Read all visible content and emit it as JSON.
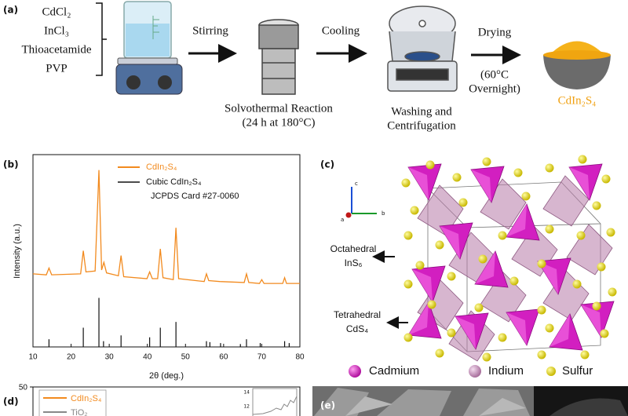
{
  "panel_a": {
    "label": "(a)",
    "reagents": [
      "CdCl₂",
      "InCl₃",
      "Thioacetamide",
      "PVP"
    ],
    "steps": [
      "Stirring",
      "Cooling",
      "Drying"
    ],
    "reaction": [
      "Solvothermal Reaction",
      "(24 h at 180°C)"
    ],
    "washing": [
      "Washing and",
      "Centrifugation"
    ],
    "drying_conditions": [
      "(60°C",
      "Overnight)"
    ],
    "product": "CdIn₂S₄"
  },
  "panel_b": {
    "label": "(b)",
    "chart_data": {
      "type": "line",
      "x_label": "2θ (deg.)",
      "y_label": "Intensity (a.u.)",
      "xlim": [
        10,
        80
      ],
      "xticks": [
        10,
        20,
        30,
        40,
        50,
        60,
        70,
        80
      ],
      "ylim": [
        0,
        100
      ],
      "series": [
        {
          "name": "CdIn₂S₄",
          "color": "#f28a1e",
          "x": [
            10,
            13.5,
            14.2,
            14.9,
            22.5,
            23.2,
            23.9,
            26.3,
            27.3,
            28.0,
            28.6,
            29.3,
            32.4,
            33.1,
            33.8,
            39.9,
            40.6,
            41.3,
            42.7,
            43.4,
            44.1,
            46.8,
            47.5,
            48.2,
            54.9,
            55.5,
            56.1,
            59.0,
            65.4,
            66.0,
            66.6,
            69.4,
            70.0,
            70.6,
            75.5,
            76.0,
            76.5,
            80
          ],
          "values": [
            38,
            37.5,
            41,
            37.5,
            38,
            50,
            39,
            39.5,
            92,
            40,
            44,
            38.5,
            37,
            47.5,
            36.5,
            35.5,
            39,
            35.5,
            35.5,
            51,
            36,
            35,
            62,
            35.5,
            34,
            38,
            34.5,
            34,
            33.5,
            38,
            33.5,
            33,
            35,
            33,
            33,
            36,
            33,
            33
          ]
        }
      ],
      "reference": {
        "name": "Cubic CdIn₂S₄",
        "card": "JCPDS Card #27-0060",
        "color": "#111111",
        "x": [
          14.2,
          23.2,
          27.3,
          28.5,
          33.1,
          40.6,
          43.4,
          47.5,
          55.5,
          56.4,
          59.2,
          64.4,
          66.0,
          69.6,
          76.0,
          77.2
        ],
        "values": [
          4,
          10,
          25.5,
          3,
          6,
          5,
          10,
          13,
          3,
          2.5,
          2,
          1.5,
          4,
          2,
          3,
          2
        ]
      }
    }
  },
  "panel_c": {
    "label": "(c)",
    "axes": [
      "c",
      "b",
      "a"
    ],
    "octahedral": [
      "Octahedral",
      "InS₆"
    ],
    "tetrahedral": [
      "Tetrahedral",
      "CdS₄"
    ],
    "legend": [
      "Cadmium",
      "Indium",
      "Sulfur"
    ]
  },
  "panel_d": {
    "label": "(d)",
    "y_tick": 50,
    "legend": [
      "CdIn₂S₄",
      "TiO₂"
    ],
    "inset_ticks": [
      14,
      12
    ]
  },
  "panel_e": {
    "label": "(e)"
  }
}
